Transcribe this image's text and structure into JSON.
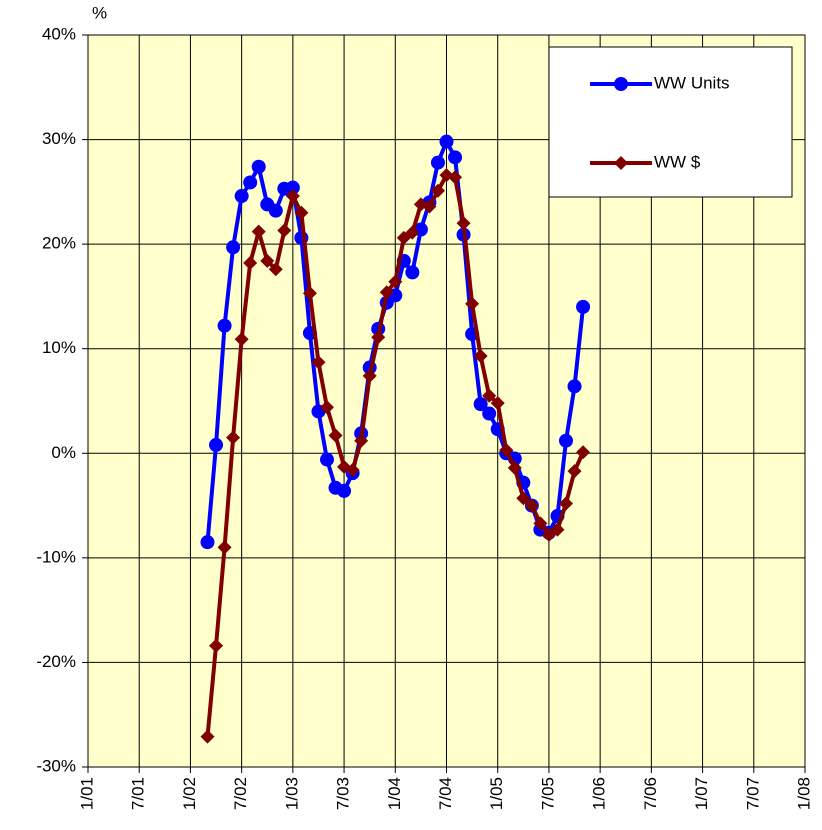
{
  "chart_data": {
    "type": "line",
    "y_label": "%",
    "x": [
      "3/02",
      "4/02",
      "5/02",
      "6/02",
      "7/02",
      "8/02",
      "9/02",
      "10/02",
      "11/02",
      "12/02",
      "1/03",
      "2/03",
      "3/03",
      "4/03",
      "5/03",
      "6/03",
      "7/03",
      "8/03",
      "9/03",
      "10/03",
      "11/03",
      "12/03",
      "1/04",
      "2/04",
      "3/04",
      "4/04",
      "5/04",
      "6/04",
      "7/04",
      "8/04",
      "9/04",
      "10/04",
      "11/04",
      "12/04",
      "1/05",
      "2/05",
      "3/05",
      "4/05",
      "5/05",
      "6/05",
      "7/05",
      "8/05",
      "9/05",
      "10/05",
      "11/05"
    ],
    "series": [
      {
        "name": "WW Units",
        "color": "#0000ff",
        "marker": "circle",
        "values": [
          -8.5,
          0.8,
          12.2,
          19.7,
          24.6,
          25.9,
          27.4,
          23.8,
          23.2,
          25.3,
          25.4,
          20.6,
          11.5,
          4.0,
          -0.6,
          -3.3,
          -3.6,
          -1.9,
          1.9,
          8.2,
          11.9,
          14.4,
          15.1,
          18.4,
          17.3,
          21.4,
          24.0,
          27.8,
          29.8,
          28.3,
          20.9,
          11.4,
          4.7,
          3.8,
          2.3,
          0.0,
          -0.5,
          -2.8,
          -5.0,
          -7.3,
          -7.6,
          -6.0,
          1.2,
          6.4,
          14.0
        ]
      },
      {
        "name": "WW $",
        "color": "#800000",
        "marker": "diamond",
        "values": [
          -27.1,
          -18.4,
          -9.0,
          1.5,
          10.9,
          18.2,
          21.2,
          18.4,
          17.6,
          21.3,
          24.6,
          23.0,
          15.3,
          8.7,
          4.4,
          1.7,
          -1.3,
          -1.6,
          1.2,
          7.4,
          11.1,
          15.4,
          16.4,
          20.6,
          21.1,
          23.8,
          23.6,
          25.1,
          26.6,
          26.4,
          22.0,
          14.3,
          9.3,
          5.5,
          4.8,
          0.3,
          -1.4,
          -4.3,
          -5.0,
          -6.7,
          -7.8,
          -7.3,
          -4.8,
          -1.7,
          0.1
        ]
      }
    ],
    "xlim": [
      "1/01",
      "1/08"
    ],
    "xticks": [
      "1/01",
      "7/01",
      "1/02",
      "7/02",
      "1/03",
      "7/03",
      "1/04",
      "7/04",
      "1/05",
      "7/05",
      "1/06",
      "7/06",
      "1/07",
      "7/07",
      "1/08"
    ],
    "ylim": [
      -30,
      40
    ],
    "yticks": [
      {
        "value": -30,
        "label": "-30%"
      },
      {
        "value": -20,
        "label": "-20%"
      },
      {
        "value": -10,
        "label": "-10%"
      },
      {
        "value": 0,
        "label": "0%"
      },
      {
        "value": 10,
        "label": "10%"
      },
      {
        "value": 20,
        "label": "20%"
      },
      {
        "value": 30,
        "label": "30%"
      },
      {
        "value": 40,
        "label": "40%"
      }
    ],
    "grid": true,
    "legend": "upper right",
    "background": "#ffffcc"
  }
}
